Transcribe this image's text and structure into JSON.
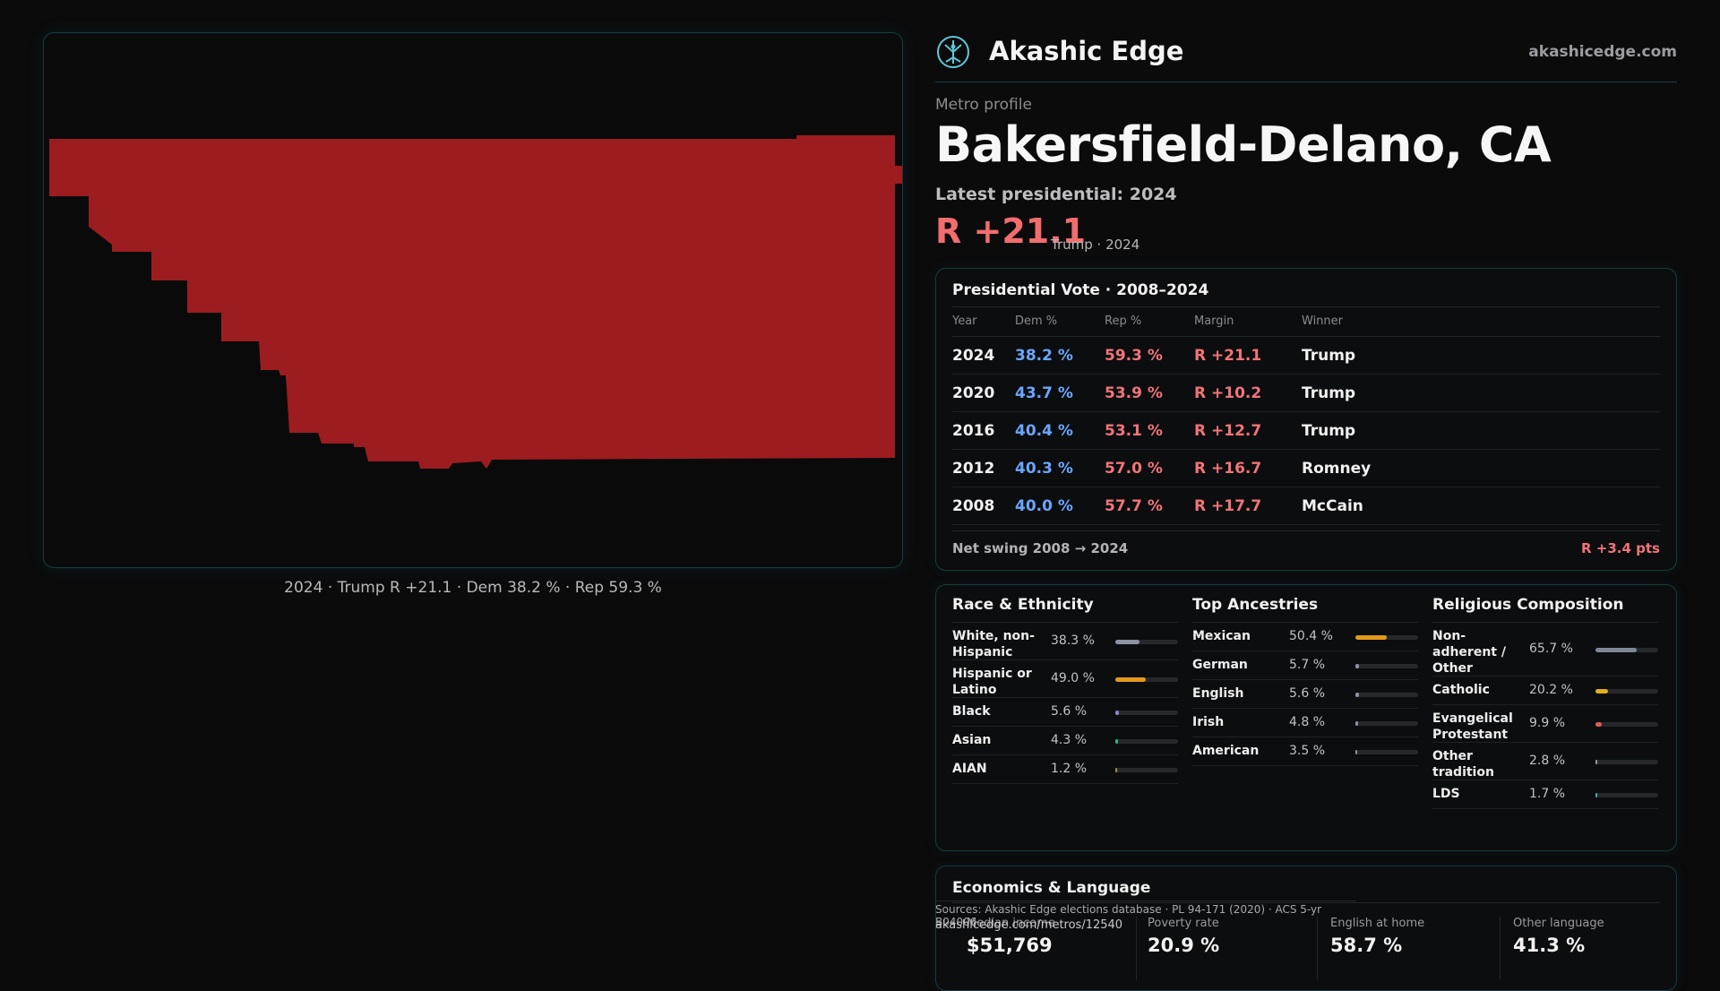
{
  "map": {
    "caption": "2024 · Trump R +21.1 · Dem 38.2 % · Rep 59.3 %",
    "fill_color": "#9c1c20"
  },
  "brand": {
    "name": "Akashic Edge",
    "url": "akashicedge.com",
    "logo_icon": "tree-of-life-icon"
  },
  "header": {
    "eyebrow": "Metro profile",
    "title": "Bakersfield-Delano, CA",
    "latest_label": "Latest presidential: 2024",
    "margin": "R +21.1",
    "margin_sub": "Trump · 2024"
  },
  "vote": {
    "title": "Presidential Vote · 2008–2024",
    "columns": [
      "Year",
      "Dem %",
      "Rep %",
      "Margin",
      "Winner"
    ],
    "rows": [
      {
        "year": "2024",
        "dem": "38.2 %",
        "rep": "59.3 %",
        "margin": "R +21.1",
        "winner": "Trump"
      },
      {
        "year": "2020",
        "dem": "43.7 %",
        "rep": "53.9 %",
        "margin": "R +10.2",
        "winner": "Trump"
      },
      {
        "year": "2016",
        "dem": "40.4 %",
        "rep": "53.1 %",
        "margin": "R +12.7",
        "winner": "Trump"
      },
      {
        "year": "2012",
        "dem": "40.3 %",
        "rep": "57.0 %",
        "margin": "R +16.7",
        "winner": "Romney"
      },
      {
        "year": "2008",
        "dem": "40.0 %",
        "rep": "57.7 %",
        "margin": "R +17.7",
        "winner": "McCain"
      }
    ],
    "swing_label": "Net swing 2008 → 2024",
    "swing_value": "R +3.4 pts"
  },
  "race": {
    "title": "Race & Ethnicity",
    "rows": [
      {
        "label": "White, non-Hispanic",
        "pct": "38.3 %",
        "value": 38.3,
        "color": "#8a94a3"
      },
      {
        "label": "Hispanic or Latino",
        "pct": "49.0 %",
        "value": 49.0,
        "color": "#e29a1c"
      },
      {
        "label": "Black",
        "pct": "5.6 %",
        "value": 5.6,
        "color": "#8f7fe0"
      },
      {
        "label": "Asian",
        "pct": "4.3 %",
        "value": 4.3,
        "color": "#2fb37b"
      },
      {
        "label": "AIAN",
        "pct": "1.2 %",
        "value": 1.2,
        "color": "#b08a55"
      }
    ]
  },
  "ancestry": {
    "title": "Top Ancestries",
    "rows": [
      {
        "label": "Mexican",
        "pct": "50.4 %",
        "value": 50.4,
        "color": "#e29a1c"
      },
      {
        "label": "German",
        "pct": "5.7 %",
        "value": 5.7,
        "color": "#8a94a3"
      },
      {
        "label": "English",
        "pct": "5.6 %",
        "value": 5.6,
        "color": "#8a94a3"
      },
      {
        "label": "Irish",
        "pct": "4.8 %",
        "value": 4.8,
        "color": "#8a94a3"
      },
      {
        "label": "American",
        "pct": "3.5 %",
        "value": 3.5,
        "color": "#8a94a3"
      }
    ]
  },
  "religion": {
    "title": "Religious Composition",
    "rows": [
      {
        "label": "Non-adherent / Other",
        "pct": "65.7 %",
        "value": 65.7,
        "color": "#7d8796"
      },
      {
        "label": "Catholic",
        "pct": "20.2 %",
        "value": 20.2,
        "color": "#e2ae1c"
      },
      {
        "label": "Evangelical Protestant",
        "pct": "9.9 %",
        "value": 9.9,
        "color": "#e05a5a"
      },
      {
        "label": "Other tradition",
        "pct": "2.8 %",
        "value": 2.8,
        "color": "#9a9aa0"
      },
      {
        "label": "LDS",
        "pct": "1.7 %",
        "value": 1.7,
        "color": "#3fb0a6"
      }
    ]
  },
  "econ": {
    "title": "Economics & Language",
    "cells": [
      {
        "label": "Median income",
        "value": "$51,769"
      },
      {
        "label": "Poverty rate",
        "value": "20.9 %"
      },
      {
        "label": "English at home",
        "value": "58.7 %"
      },
      {
        "label": "Other language",
        "value": "41.3 %"
      }
    ]
  },
  "footer": {
    "sources": "Sources: Akashic Edge elections database · PL 94-171 (2020) · ACS 5-yr B04006",
    "permalink": "akashicedge.com/metros/12540"
  }
}
